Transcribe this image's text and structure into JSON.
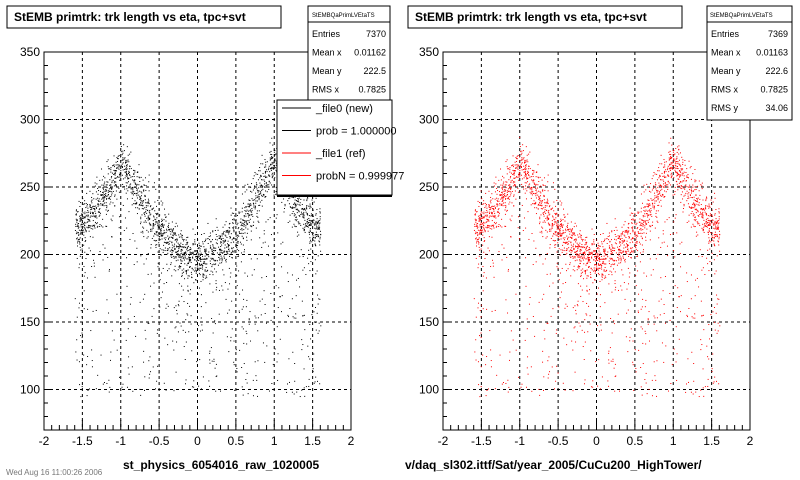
{
  "footer": "Wed Aug 16 11:00:26 2006",
  "chart_data": [
    {
      "type": "scatter",
      "title": "StEMB primtrk: trk length vs eta, tpc+svt",
      "xlabel": "st_physics_6054016_raw_1020005",
      "ylabel": "",
      "xlim": [
        -2,
        2
      ],
      "ylim": [
        70,
        350
      ],
      "xticks": [
        -2,
        -1.5,
        -1,
        -0.5,
        0,
        0.5,
        1,
        1.5,
        2
      ],
      "xtick_labels": [
        "-2",
        "-1.5",
        "-1",
        "-0.5",
        "0",
        "0.5",
        "1",
        "1.5",
        "2"
      ],
      "yticks": [
        100,
        150,
        200,
        250,
        300,
        350
      ],
      "ytick_labels": [
        "100",
        "150",
        "200",
        "250",
        "300",
        "350"
      ],
      "grid": true,
      "marker_color": "#000000",
      "stats": {
        "name": "StEMBQaPrimLVEtaTS",
        "rows": [
          {
            "label": "Entries",
            "value": "7370"
          },
          {
            "label": "Mean x",
            "value": "0.01162"
          },
          {
            "label": "Mean y",
            "value": "222.5"
          },
          {
            "label": "RMS x",
            "value": "0.7825"
          }
        ]
      },
      "legend": {
        "position": "top-right",
        "entries": [
          {
            "label": "_file0 (new)",
            "color": "#000000"
          },
          {
            "label": "prob = 1.000000",
            "color": "#000000"
          },
          {
            "label": "_file1 (ref)",
            "color": "#ff0000"
          },
          {
            "label": "probN = 0.999977",
            "color": "#ff0000"
          }
        ]
      },
      "trend_points": [
        {
          "x": -1.5,
          "y": 222
        },
        {
          "x": -1.2,
          "y": 245
        },
        {
          "x": -1.0,
          "y": 268
        },
        {
          "x": -0.8,
          "y": 248
        },
        {
          "x": -0.6,
          "y": 225
        },
        {
          "x": -0.4,
          "y": 212
        },
        {
          "x": -0.2,
          "y": 200
        },
        {
          "x": 0.0,
          "y": 197
        },
        {
          "x": 0.2,
          "y": 200
        },
        {
          "x": 0.4,
          "y": 212
        },
        {
          "x": 0.6,
          "y": 225
        },
        {
          "x": 0.8,
          "y": 248
        },
        {
          "x": 1.0,
          "y": 268
        },
        {
          "x": 1.2,
          "y": 245
        },
        {
          "x": 1.5,
          "y": 222
        }
      ]
    },
    {
      "type": "scatter",
      "title": "StEMB primtrk: trk length vs eta, tpc+svt",
      "xlabel": "v/daq_sl302.ittf/Sat/year_2005/CuCu200_HighTower/",
      "ylabel": "",
      "xlim": [
        -2,
        2
      ],
      "ylim": [
        70,
        350
      ],
      "xticks": [
        -2,
        -1.5,
        -1,
        -0.5,
        0,
        0.5,
        1,
        1.5,
        2
      ],
      "xtick_labels": [
        "-2",
        "-1.5",
        "-1",
        "-0.5",
        "0",
        "0.5",
        "1",
        "1.5",
        "2"
      ],
      "yticks": [
        100,
        150,
        200,
        250,
        300,
        350
      ],
      "ytick_labels": [
        "100",
        "150",
        "200",
        "250",
        "300",
        "350"
      ],
      "grid": true,
      "marker_color": "#ff0000",
      "stats": {
        "name": "StEMBQaPrimLVEtaTS",
        "rows": [
          {
            "label": "Entries",
            "value": "7369"
          },
          {
            "label": "Mean x",
            "value": "0.01163"
          },
          {
            "label": "Mean y",
            "value": "222.6"
          },
          {
            "label": "RMS x",
            "value": "0.7825"
          },
          {
            "label": "RMS y",
            "value": "34.06"
          }
        ]
      },
      "trend_points": [
        {
          "x": -1.5,
          "y": 222
        },
        {
          "x": -1.2,
          "y": 245
        },
        {
          "x": -1.0,
          "y": 268
        },
        {
          "x": -0.8,
          "y": 248
        },
        {
          "x": -0.6,
          "y": 225
        },
        {
          "x": -0.4,
          "y": 212
        },
        {
          "x": -0.2,
          "y": 200
        },
        {
          "x": 0.0,
          "y": 197
        },
        {
          "x": 0.2,
          "y": 200
        },
        {
          "x": 0.4,
          "y": 212
        },
        {
          "x": 0.6,
          "y": 225
        },
        {
          "x": 0.8,
          "y": 248
        },
        {
          "x": 1.0,
          "y": 268
        },
        {
          "x": 1.2,
          "y": 245
        },
        {
          "x": 1.5,
          "y": 222
        }
      ]
    }
  ]
}
